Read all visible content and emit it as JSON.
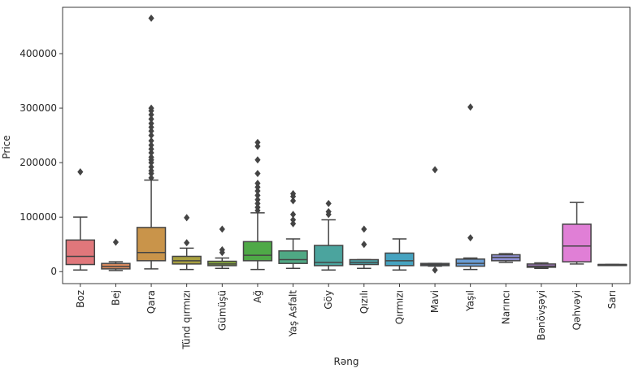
{
  "chart_data": {
    "type": "boxplot",
    "title": "",
    "xlabel": "Rəng",
    "ylabel": "Price",
    "ylim": [
      -22000,
      485000
    ],
    "yticks": [
      0,
      100000,
      200000,
      300000,
      400000
    ],
    "ytick_labels": [
      "0",
      "100000",
      "200000",
      "300000",
      "400000"
    ],
    "grid": false,
    "categories": [
      "Boz",
      "Bej",
      "Qara",
      "Tünd qırmızı",
      "Gümüşü",
      "Ağ",
      "Yaş Asfalt",
      "Göy",
      "Qızılı",
      "Qırmızı",
      "Mavi",
      "Yaşıl",
      "Narıncı",
      "Bənövşəyi",
      "Qəhvəyi",
      "Sarı"
    ],
    "boxes": [
      {
        "category": "Boz",
        "color": "#e0777b",
        "whislo": 3000,
        "q1": 13000,
        "med": 28000,
        "q3": 58000,
        "whishi": 100000,
        "fliers": [
          183000
        ]
      },
      {
        "category": "Bej",
        "color": "#d98a5e",
        "whislo": 2000,
        "q1": 5000,
        "med": 9500,
        "q3": 15000,
        "whishi": 18000,
        "fliers": [
          54000
        ]
      },
      {
        "category": "Qara",
        "color": "#c9944a",
        "whislo": 5000,
        "q1": 20000,
        "med": 35000,
        "q3": 81000,
        "whishi": 168000,
        "fliers": [
          172000,
          180000,
          185000,
          192000,
          200000,
          205000,
          210000,
          218000,
          225000,
          232000,
          240000,
          250000,
          258000,
          265000,
          272000,
          280000,
          288000,
          295000,
          300000,
          465000
        ]
      },
      {
        "category": "Tünd qırmızı",
        "color": "#a8a040",
        "whislo": 4000,
        "q1": 14000,
        "med": 20000,
        "q3": 28000,
        "whishi": 43000,
        "fliers": [
          53000,
          99000
        ]
      },
      {
        "category": "Gümüşü",
        "color": "#87a83f",
        "whislo": 6000,
        "q1": 11000,
        "med": 14000,
        "q3": 19000,
        "whishi": 25000,
        "fliers": [
          35000,
          40000,
          78000
        ]
      },
      {
        "category": "Ağ",
        "color": "#4fa947",
        "whislo": 4000,
        "q1": 20000,
        "med": 30000,
        "q3": 55000,
        "whishi": 108000,
        "fliers": [
          112000,
          118000,
          125000,
          132000,
          140000,
          148000,
          155000,
          162000,
          180000,
          205000,
          230000,
          237000
        ]
      },
      {
        "category": "Yaş Asfalt",
        "color": "#4fa884",
        "whislo": 6000,
        "q1": 15000,
        "med": 22000,
        "q3": 38000,
        "whishi": 60000,
        "fliers": [
          88000,
          95000,
          105000,
          130000,
          138000,
          143000
        ]
      },
      {
        "category": "Göy",
        "color": "#4ba49e",
        "whislo": 3000,
        "q1": 11000,
        "med": 17000,
        "q3": 48000,
        "whishi": 95000,
        "fliers": [
          105000,
          110000,
          125000
        ]
      },
      {
        "category": "Qızılı",
        "color": "#4ba3a8",
        "whislo": 6000,
        "q1": 13000,
        "med": 17000,
        "q3": 22000,
        "whishi": 22000,
        "fliers": [
          50000,
          78000
        ]
      },
      {
        "category": "Qırmızı",
        "color": "#46a3c0",
        "whislo": 3000,
        "q1": 11000,
        "med": 20000,
        "q3": 34000,
        "whishi": 60000,
        "fliers": []
      },
      {
        "category": "Mavi",
        "color": "#5b9fd0",
        "whislo": 10000,
        "q1": 11000,
        "med": 13000,
        "q3": 15000,
        "whishi": 15000,
        "fliers": [
          3000,
          187000
        ]
      },
      {
        "category": "Yaşıl",
        "color": "#6a9ed6",
        "whislo": 4000,
        "q1": 10000,
        "med": 15000,
        "q3": 23000,
        "whishi": 25000,
        "fliers": [
          62000,
          302000
        ]
      },
      {
        "category": "Narıncı",
        "color": "#8d8fd1",
        "whislo": 17000,
        "q1": 20000,
        "med": 26000,
        "q3": 31000,
        "whishi": 33000,
        "fliers": []
      },
      {
        "category": "Bənövşəyi",
        "color": "#a67ec4",
        "whislo": 6000,
        "q1": 8000,
        "med": 10000,
        "q3": 14000,
        "whishi": 16000,
        "fliers": []
      },
      {
        "category": "Qəhvəyi",
        "color": "#e07fd6",
        "whislo": 14000,
        "q1": 18000,
        "med": 47000,
        "q3": 87000,
        "whishi": 127000,
        "fliers": []
      },
      {
        "category": "Sarı",
        "color": "#e07fa8",
        "whislo": 13000,
        "q1": 13000,
        "med": 13000,
        "q3": 13000,
        "whishi": 13000,
        "fliers": []
      }
    ]
  }
}
